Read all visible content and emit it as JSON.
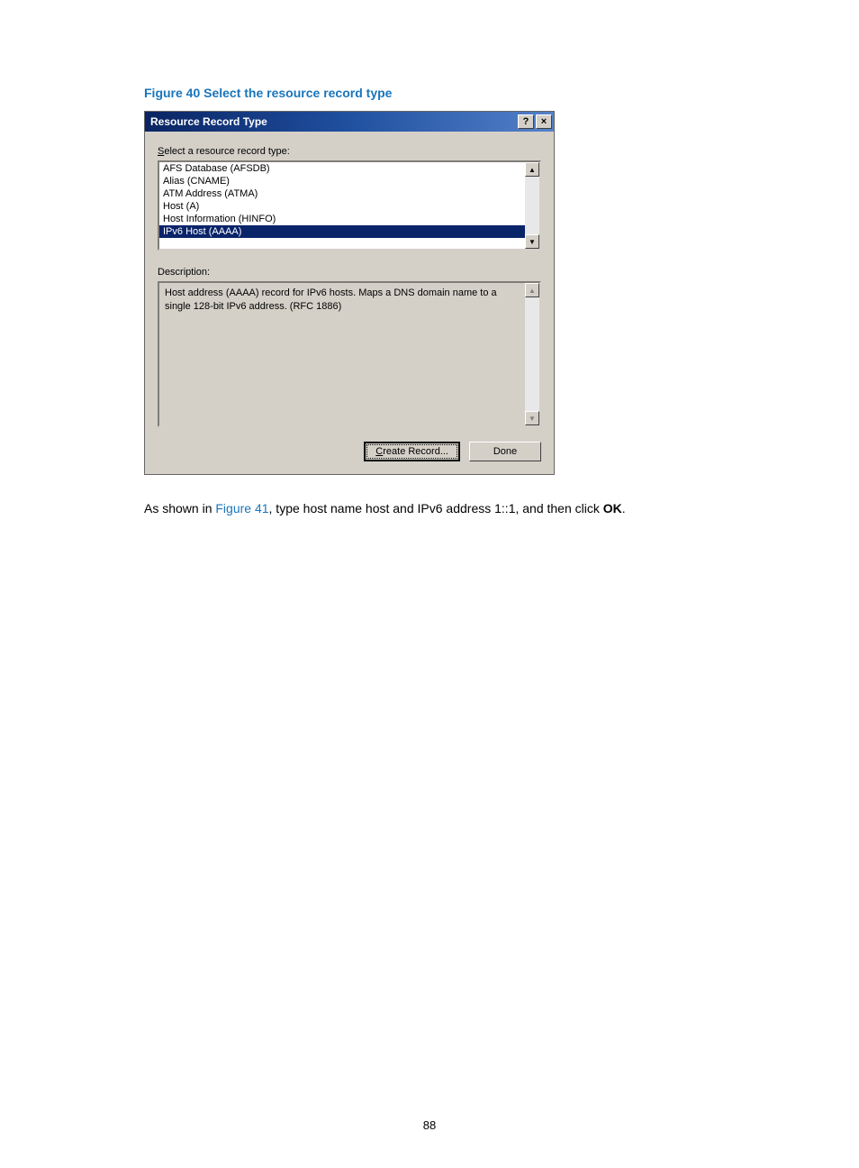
{
  "figure_caption": "Figure 40 Select the resource record type",
  "dialog": {
    "title": "Resource Record Type",
    "select_label_pre": "S",
    "select_label_rest": "elect a resource record type:",
    "list_items": [
      "AFS Database (AFSDB)",
      "Alias (CNAME)",
      "ATM Address (ATMA)",
      "Host (A)",
      "Host Information (HINFO)",
      "IPv6 Host (AAAA)"
    ],
    "selected_index": 5,
    "description_label": "Description:",
    "description_text": "Host address (AAAA) record for IPv6 hosts. Maps a DNS domain name to a single 128-bit IPv6 address. (RFC 1886)",
    "create_btn_pre": "C",
    "create_btn_rest": "reate Record...",
    "done_btn": "Done",
    "help_btn": "?",
    "close_btn": "×",
    "scroll_up": "▲",
    "scroll_down": "▼"
  },
  "paragraph": {
    "pre": "As shown in ",
    "figref": "Figure 41",
    "mid": ", type host name host and IPv6 address 1::1, and then click ",
    "bold": "OK",
    "post": "."
  },
  "page_number": "88"
}
